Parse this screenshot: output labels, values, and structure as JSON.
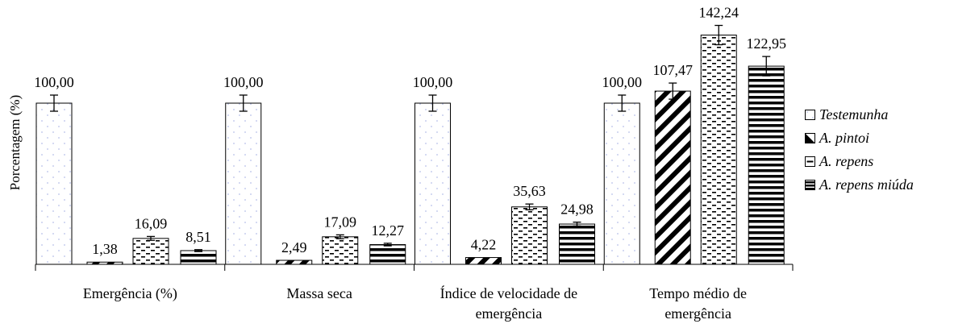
{
  "chart_data": {
    "type": "bar",
    "ylabel": "Porcentagem (%)",
    "ylim": [
      0,
      150
    ],
    "grid": false,
    "legend_position": "right",
    "categories": [
      [
        "Emergência (%)"
      ],
      [
        "Massa seca"
      ],
      [
        "Índice de velocidade de",
        "emergência"
      ],
      [
        "Tempo médio de",
        "emergência"
      ]
    ],
    "series": [
      {
        "name": "Testemunha",
        "pattern": "dots",
        "values": [
          100.0,
          100.0,
          100.0,
          100.0
        ],
        "labels": [
          "100,00",
          "100,00",
          "100,00",
          "100,00"
        ],
        "errors": [
          5,
          5,
          5,
          5
        ]
      },
      {
        "name": "A. pintoi",
        "pattern": "diagonal",
        "values": [
          1.38,
          2.49,
          4.22,
          107.47
        ],
        "labels": [
          "1,38",
          "2,49",
          "4,22",
          "107,47"
        ],
        "errors": [
          0,
          0,
          0,
          5
        ]
      },
      {
        "name": "A. repens",
        "pattern": "dashes",
        "values": [
          16.09,
          17.09,
          35.63,
          142.24
        ],
        "labels": [
          "16,09",
          "17,09",
          "35,63",
          "142,24"
        ],
        "errors": [
          1.2,
          1.2,
          1.8,
          6
        ]
      },
      {
        "name": "A. repens miúda",
        "pattern": "horizontal",
        "values": [
          8.51,
          12.27,
          24.98,
          122.95
        ],
        "labels": [
          "8,51",
          "12,27",
          "24,98",
          "122,95"
        ],
        "errors": [
          0.6,
          0.8,
          1.2,
          6
        ]
      }
    ],
    "colors": {
      "axis": "#000000",
      "dots": "#b8c0ea",
      "fill": "#ffffff"
    }
  }
}
